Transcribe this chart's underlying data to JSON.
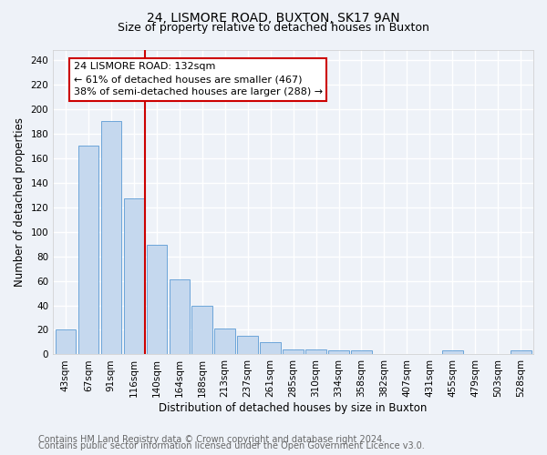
{
  "title": "24, LISMORE ROAD, BUXTON, SK17 9AN",
  "subtitle": "Size of property relative to detached houses in Buxton",
  "xlabel": "Distribution of detached houses by size in Buxton",
  "ylabel": "Number of detached properties",
  "bin_labels": [
    "43sqm",
    "67sqm",
    "91sqm",
    "116sqm",
    "140sqm",
    "164sqm",
    "188sqm",
    "213sqm",
    "237sqm",
    "261sqm",
    "285sqm",
    "310sqm",
    "334sqm",
    "358sqm",
    "382sqm",
    "407sqm",
    "431sqm",
    "455sqm",
    "479sqm",
    "503sqm",
    "528sqm"
  ],
  "bar_heights": [
    20,
    170,
    190,
    127,
    89,
    61,
    40,
    21,
    15,
    10,
    4,
    4,
    3,
    3,
    0,
    0,
    0,
    3,
    0,
    0,
    3
  ],
  "bar_color": "#c5d8ee",
  "bar_edge_color": "#5b9bd5",
  "property_line_x": 3.5,
  "annotation_title": "24 LISMORE ROAD: 132sqm",
  "annotation_line1": "← 61% of detached houses are smaller (467)",
  "annotation_line2": "38% of semi-detached houses are larger (288) →",
  "annotation_box_color": "#ffffff",
  "annotation_box_edge_color": "#cc0000",
  "vline_color": "#cc0000",
  "ylim": [
    0,
    248
  ],
  "yticks": [
    0,
    20,
    40,
    60,
    80,
    100,
    120,
    140,
    160,
    180,
    200,
    220,
    240
  ],
  "footer1": "Contains HM Land Registry data © Crown copyright and database right 2024.",
  "footer2": "Contains public sector information licensed under the Open Government Licence v3.0.",
  "bg_color": "#eef2f8",
  "plot_bg_color": "#eef2f8",
  "grid_color": "#ffffff",
  "title_fontsize": 10,
  "subtitle_fontsize": 9,
  "axis_label_fontsize": 8.5,
  "tick_fontsize": 7.5,
  "footer_fontsize": 7,
  "annotation_fontsize": 8
}
